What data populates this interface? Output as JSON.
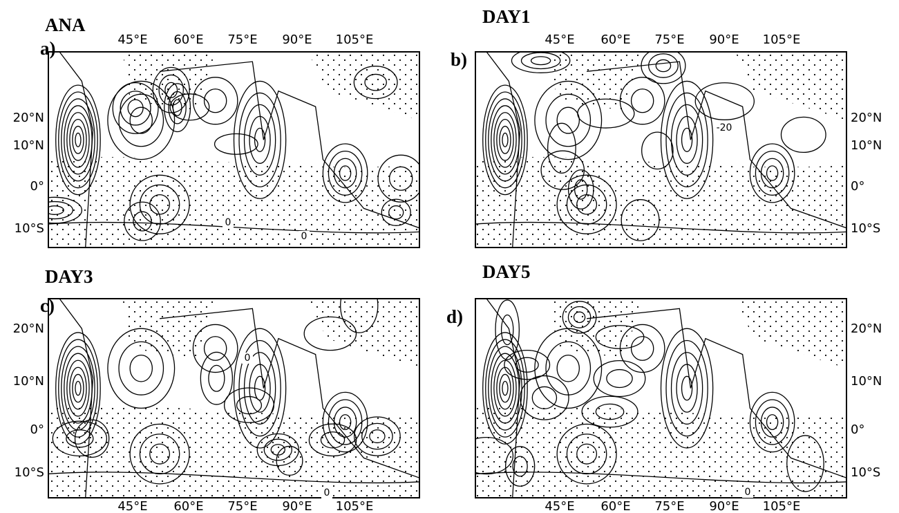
{
  "panels": [
    {
      "letter": "a)",
      "title": "ANA",
      "x_labels": [
        "45°E",
        "60°E",
        "75°E",
        "90°E",
        "105°E"
      ],
      "y_labels": [
        "20°N",
        "10°N",
        "0°",
        "10°S"
      ],
      "contour_labels": [
        "0",
        "0"
      ]
    },
    {
      "letter": "b)",
      "title": "DAY1",
      "x_labels": [
        "45°E",
        "60°E",
        "75°E",
        "90°E",
        "105°E"
      ],
      "y_labels": [
        "20°N",
        "10°N",
        "0°",
        "10°S"
      ],
      "contour_labels": [
        "-20"
      ]
    },
    {
      "letter": "c)",
      "title": "DAY3",
      "x_labels": [
        "45°E",
        "60°E",
        "75°E",
        "90°E",
        "105°E"
      ],
      "y_labels": [
        "20°N",
        "10°N",
        "0°",
        "10°S"
      ],
      "contour_labels": [
        "0",
        "0"
      ]
    },
    {
      "letter": "d)",
      "title": "DAY5",
      "x_labels": [
        "45°E",
        "60°E",
        "75°E",
        "90°E",
        "105°E"
      ],
      "y_labels": [
        "20°N",
        "10°N",
        "0°",
        "10°S"
      ],
      "contour_labels": [
        "0"
      ]
    }
  ]
}
